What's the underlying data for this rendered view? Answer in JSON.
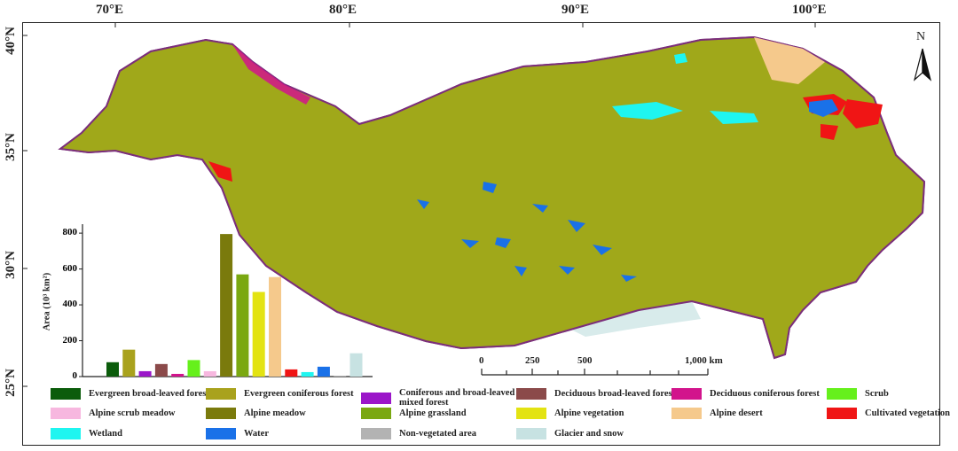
{
  "axes": {
    "lon_labels": [
      "70°E",
      "80°E",
      "90°E",
      "100°E"
    ],
    "lat_labels": [
      "40°N",
      "35°N",
      "30°N",
      "25°N"
    ]
  },
  "north_arrow": {
    "label": "N"
  },
  "scale_bar": {
    "labels": [
      "0",
      "250",
      "500",
      "1,000 km"
    ]
  },
  "legend": [
    {
      "label": "Evergreen broad-leaved forest",
      "color": "#0b5c0b"
    },
    {
      "label": "Evergreen coniferous forest",
      "color": "#a9a21d"
    },
    {
      "label": "Coniferous and broad-leaved mixed forest",
      "color": "#9b16c9"
    },
    {
      "label": "Deciduous broad-leaved forest",
      "color": "#8b4a4a"
    },
    {
      "label": "Deciduous coniferous forest",
      "color": "#d2148c"
    },
    {
      "label": "Scrub",
      "color": "#66f01c"
    },
    {
      "label": "Alpine scrub meadow",
      "color": "#f7b7df"
    },
    {
      "label": "Alpine meadow",
      "color": "#7a7a0c"
    },
    {
      "label": "Alpine grassland",
      "color": "#7aa811"
    },
    {
      "label": "Alpine vegetation",
      "color": "#e3e312"
    },
    {
      "label": "Alpine desert",
      "color": "#f5c98c"
    },
    {
      "label": "Cultivated vegetation",
      "color": "#f01515"
    },
    {
      "label": "Wetland",
      "color": "#1ff5f0"
    },
    {
      "label": "Water",
      "color": "#1a71e8"
    },
    {
      "label": "Non-vegetated area",
      "color": "#b3b3b3"
    },
    {
      "label": "Glacier and snow",
      "color": "#c7e2e2"
    }
  ],
  "chart_data": {
    "type": "bar",
    "ylabel": "Area (10³ km²)",
    "ylim": [
      0,
      850
    ],
    "yticks": [
      0,
      200,
      400,
      600,
      800
    ],
    "categories": [
      "Evergreen broad-leaved forest",
      "Evergreen coniferous forest",
      "Coniferous and broad-leaved mixed forest",
      "Deciduous broad-leaved forest",
      "Deciduous coniferous forest",
      "Scrub",
      "Alpine scrub meadow",
      "Alpine meadow",
      "Alpine grassland",
      "Alpine vegetation",
      "Alpine desert",
      "Cultivated vegetation",
      "Wetland",
      "Water",
      "Non-vegetated area",
      "Glacier and snow"
    ],
    "values": [
      80,
      150,
      30,
      70,
      15,
      92,
      30,
      795,
      570,
      472,
      555,
      40,
      25,
      55,
      5,
      130
    ]
  }
}
